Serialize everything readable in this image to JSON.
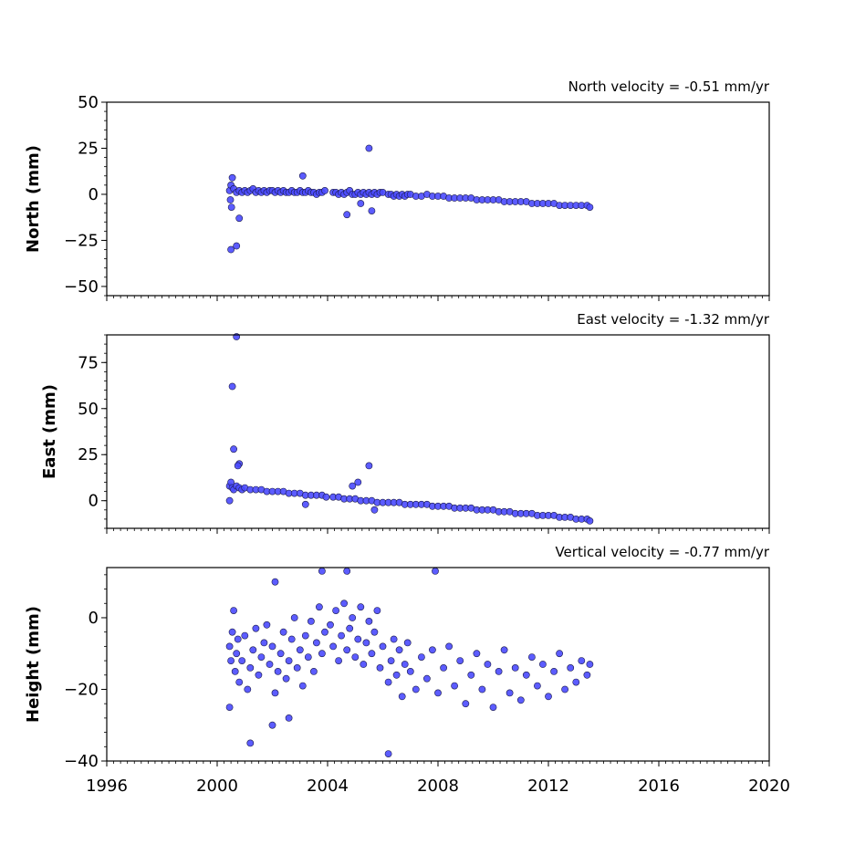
{
  "chart_data": [
    {
      "type": "scatter",
      "title": "North velocity = -0.51 mm/yr",
      "ylabel": "North (mm)",
      "ylim": [
        -55,
        50
      ],
      "yticks": [
        -50,
        -25,
        0,
        25,
        50
      ],
      "ytick_labels": [
        "−50",
        "−25",
        "0",
        "25",
        "50"
      ],
      "xlim": [
        1996,
        2020
      ],
      "marker_color": "#4a4aff",
      "velocity_mm_per_yr": -0.51,
      "series": [
        {
          "x": [
            2000.45,
            2000.5,
            2000.55,
            2000.6,
            2000.7,
            2000.8,
            2000.9,
            2001.0,
            2001.1,
            2001.2,
            2001.3,
            2001.4,
            2001.5,
            2001.6,
            2001.7,
            2001.8,
            2001.9,
            2002.0,
            2002.1,
            2002.2,
            2002.3,
            2002.4,
            2002.5,
            2002.6,
            2002.7,
            2002.8,
            2002.9,
            2003.0,
            2003.1,
            2003.2,
            2003.3,
            2003.4,
            2003.5,
            2003.6,
            2003.7,
            2003.8,
            2003.9,
            2004.2,
            2004.3,
            2004.4,
            2004.5,
            2004.6,
            2004.7,
            2004.8,
            2004.9,
            2005.0,
            2005.1,
            2005.2,
            2005.3,
            2005.4,
            2005.5,
            2005.6,
            2005.7,
            2005.8,
            2005.9,
            2006.0,
            2006.2,
            2006.3,
            2006.4,
            2006.5,
            2006.6,
            2006.7,
            2006.8,
            2006.9,
            2007.0,
            2007.2,
            2007.4,
            2007.6,
            2007.8,
            2008.0,
            2008.2,
            2008.4,
            2008.6,
            2008.8,
            2009.0,
            2009.2,
            2009.4,
            2009.6,
            2009.8,
            2010.0,
            2010.2,
            2010.4,
            2010.6,
            2010.8,
            2011.0,
            2011.2,
            2011.4,
            2011.6,
            2011.8,
            2012.0,
            2012.2,
            2012.4,
            2012.6,
            2012.8,
            2013.0,
            2013.2,
            2013.4,
            2013.5,
            2000.5,
            2000.7,
            2000.8,
            2003.1,
            2005.5,
            2004.7,
            2005.6,
            2000.48,
            2000.52,
            2005.2
          ],
          "y": [
            2,
            5,
            9,
            3,
            1,
            2,
            1,
            2,
            1,
            2,
            3,
            1,
            2,
            1,
            2,
            1,
            2,
            2,
            1,
            2,
            1,
            2,
            1,
            1,
            2,
            1,
            1,
            2,
            1,
            1,
            2,
            1,
            1,
            0,
            1,
            1,
            2,
            1,
            1,
            0,
            1,
            0,
            1,
            2,
            0,
            0,
            1,
            0,
            1,
            0,
            1,
            0,
            1,
            0,
            1,
            1,
            0,
            0,
            -1,
            0,
            -1,
            0,
            -1,
            0,
            0,
            -1,
            -1,
            0,
            -1,
            -1,
            -1,
            -2,
            -2,
            -2,
            -2,
            -2,
            -3,
            -3,
            -3,
            -3,
            -3,
            -4,
            -4,
            -4,
            -4,
            -4,
            -5,
            -5,
            -5,
            -5,
            -5,
            -6,
            -6,
            -6,
            -6,
            -6,
            -6,
            -7,
            -30,
            -28,
            -13,
            10,
            25,
            -11,
            -9,
            -3,
            -7,
            -5
          ]
        }
      ]
    },
    {
      "type": "scatter",
      "title": "East velocity = -1.32 mm/yr",
      "ylabel": "East (mm)",
      "ylim": [
        -15,
        90
      ],
      "yticks": [
        0,
        25,
        50,
        75
      ],
      "ytick_labels": [
        "0",
        "25",
        "50",
        "75"
      ],
      "xlim": [
        1996,
        2020
      ],
      "marker_color": "#4a4aff",
      "velocity_mm_per_yr": -1.32,
      "series": [
        {
          "x": [
            2000.45,
            2000.5,
            2000.55,
            2000.6,
            2000.7,
            2000.8,
            2000.9,
            2001.0,
            2001.2,
            2001.4,
            2001.6,
            2001.8,
            2002.0,
            2002.2,
            2002.4,
            2002.6,
            2002.8,
            2003.0,
            2003.2,
            2003.4,
            2003.6,
            2003.8,
            2003.95,
            2004.2,
            2004.4,
            2004.6,
            2004.8,
            2005.0,
            2005.2,
            2005.4,
            2005.6,
            2005.8,
            2006.0,
            2006.2,
            2006.4,
            2006.6,
            2006.8,
            2007.0,
            2007.2,
            2007.4,
            2007.6,
            2007.8,
            2008.0,
            2008.2,
            2008.4,
            2008.6,
            2008.8,
            2009.0,
            2009.2,
            2009.4,
            2009.6,
            2009.8,
            2010.0,
            2010.2,
            2010.4,
            2010.6,
            2010.8,
            2011.0,
            2011.2,
            2011.4,
            2011.6,
            2011.8,
            2012.0,
            2012.2,
            2012.4,
            2012.6,
            2012.8,
            2013.0,
            2013.2,
            2013.4,
            2013.5,
            2000.55,
            2000.7,
            2000.6,
            2000.8,
            2000.75,
            2005.5,
            2005.1,
            2004.9,
            2000.45,
            2003.2,
            2005.7
          ],
          "y": [
            8,
            10,
            7,
            6,
            8,
            7,
            6,
            7,
            6,
            6,
            6,
            5,
            5,
            5,
            5,
            4,
            4,
            4,
            3,
            3,
            3,
            3,
            2,
            2,
            2,
            1,
            1,
            1,
            0,
            0,
            0,
            -1,
            -1,
            -1,
            -1,
            -1,
            -2,
            -2,
            -2,
            -2,
            -2,
            -3,
            -3,
            -3,
            -3,
            -4,
            -4,
            -4,
            -4,
            -5,
            -5,
            -5,
            -5,
            -6,
            -6,
            -6,
            -7,
            -7,
            -7,
            -7,
            -8,
            -8,
            -8,
            -8,
            -9,
            -9,
            -9,
            -10,
            -10,
            -10,
            -11,
            62,
            89,
            28,
            20,
            19,
            19,
            10,
            8,
            0,
            -2,
            -5
          ]
        }
      ]
    },
    {
      "type": "scatter",
      "title": "Vertical velocity = -0.77 mm/yr",
      "ylabel": "Height (mm)",
      "ylim": [
        -40,
        14
      ],
      "yticks": [
        -40,
        -20,
        0
      ],
      "ytick_labels": [
        "−40",
        "−20",
        "0"
      ],
      "xlim": [
        1996,
        2020
      ],
      "xticks": [
        1996,
        2000,
        2004,
        2008,
        2012,
        2016,
        2020
      ],
      "xtick_labels": [
        "1996",
        "2000",
        "2004",
        "2008",
        "2012",
        "2016",
        "2020"
      ],
      "marker_color": "#4a4aff",
      "velocity_mm_per_yr": -0.77,
      "series": [
        {
          "x": [
            2000.45,
            2000.5,
            2000.55,
            2000.6,
            2000.65,
            2000.7,
            2000.75,
            2000.8,
            2000.9,
            2001.0,
            2001.1,
            2001.2,
            2001.3,
            2001.4,
            2001.5,
            2001.6,
            2001.7,
            2001.8,
            2001.9,
            2002.0,
            2002.1,
            2002.2,
            2002.3,
            2002.4,
            2002.5,
            2002.6,
            2002.7,
            2002.8,
            2002.9,
            2003.0,
            2003.1,
            2003.2,
            2003.3,
            2003.4,
            2003.5,
            2003.6,
            2003.7,
            2003.8,
            2003.9,
            2004.1,
            2004.2,
            2004.3,
            2004.4,
            2004.5,
            2004.6,
            2004.7,
            2004.8,
            2004.9,
            2005.0,
            2005.1,
            2005.2,
            2005.3,
            2005.4,
            2005.5,
            2005.6,
            2005.7,
            2005.8,
            2005.9,
            2006.0,
            2006.2,
            2006.3,
            2006.4,
            2006.5,
            2006.6,
            2006.7,
            2006.8,
            2006.9,
            2007.0,
            2007.2,
            2007.4,
            2007.6,
            2007.8,
            2008.0,
            2008.2,
            2008.4,
            2008.6,
            2008.8,
            2009.0,
            2009.2,
            2009.4,
            2009.6,
            2009.8,
            2010.0,
            2010.2,
            2010.4,
            2010.6,
            2010.8,
            2011.0,
            2011.2,
            2011.4,
            2011.6,
            2011.8,
            2012.0,
            2012.2,
            2012.4,
            2012.6,
            2012.8,
            2013.0,
            2013.2,
            2013.4,
            2013.5,
            2001.2,
            2002.0,
            2002.6,
            2003.8,
            2007.9,
            2006.2,
            2000.45,
            2002.1,
            2004.7
          ],
          "y": [
            -8,
            -12,
            -4,
            2,
            -15,
            -10,
            -6,
            -18,
            -12,
            -5,
            -20,
            -14,
            -9,
            -3,
            -16,
            -11,
            -7,
            -2,
            -13,
            -8,
            -21,
            -15,
            -10,
            -4,
            -17,
            -12,
            -6,
            0,
            -14,
            -9,
            -19,
            -5,
            -11,
            -1,
            -15,
            -7,
            3,
            -10,
            -4,
            -2,
            -8,
            2,
            -12,
            -5,
            4,
            -9,
            -3,
            0,
            -11,
            -6,
            3,
            -13,
            -7,
            -1,
            -10,
            -4,
            2,
            -14,
            -8,
            -18,
            -12,
            -6,
            -16,
            -9,
            -22,
            -13,
            -7,
            -15,
            -20,
            -11,
            -17,
            -9,
            -21,
            -14,
            -8,
            -19,
            -12,
            -24,
            -16,
            -10,
            -20,
            -13,
            -25,
            -15,
            -9,
            -21,
            -14,
            -23,
            -16,
            -11,
            -19,
            -13,
            -22,
            -15,
            -10,
            -20,
            -14,
            -18,
            -12,
            -16,
            -13,
            -35,
            -30,
            -28,
            13,
            13,
            -38,
            -25,
            10,
            13
          ]
        }
      ]
    }
  ]
}
